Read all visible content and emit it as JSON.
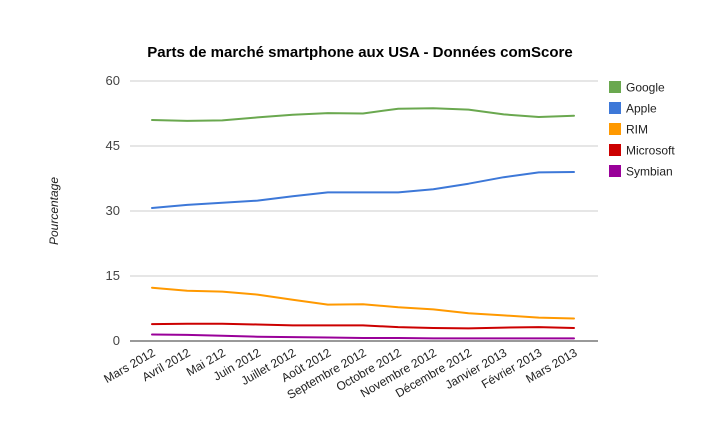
{
  "chart_data": {
    "type": "line",
    "title": "Parts de marché smartphone aux USA - Données comScore",
    "xlabel": "",
    "ylabel": "Pourcentage",
    "ylim": [
      0,
      60
    ],
    "yticks": [
      0,
      15,
      30,
      45,
      60
    ],
    "grid": true,
    "legend": "right",
    "categories": [
      "Mars 2012",
      "Avril 2012",
      "Mai 212",
      "Juin 2012",
      "Juillet 2012",
      "Août 2012",
      "Septembre 2012",
      "Octobre 2012",
      "Novembre 2012",
      "Décembre 2012",
      "Janvier 2013",
      "Février 2013",
      "Mars 2013"
    ],
    "series": [
      {
        "name": "Google",
        "color": "#6aa84f",
        "values": [
          51.0,
          50.8,
          50.9,
          51.6,
          52.2,
          52.6,
          52.5,
          53.6,
          53.7,
          53.4,
          52.3,
          51.7,
          52.0
        ]
      },
      {
        "name": "Apple",
        "color": "#3d78d8",
        "values": [
          30.7,
          31.4,
          31.9,
          32.4,
          33.4,
          34.3,
          34.3,
          34.3,
          35.0,
          36.3,
          37.8,
          38.9,
          39.0
        ]
      },
      {
        "name": "RIM",
        "color": "#ff9900",
        "values": [
          12.3,
          11.6,
          11.4,
          10.7,
          9.5,
          8.4,
          8.5,
          7.8,
          7.3,
          6.4,
          5.9,
          5.4,
          5.2
        ]
      },
      {
        "name": "Microsoft",
        "color": "#cc0000",
        "values": [
          3.9,
          4.0,
          4.0,
          3.8,
          3.6,
          3.6,
          3.6,
          3.2,
          3.0,
          2.9,
          3.1,
          3.2,
          3.0
        ]
      },
      {
        "name": "Symbian",
        "color": "#990099",
        "values": [
          1.5,
          1.4,
          1.2,
          1.0,
          0.9,
          0.8,
          0.7,
          0.7,
          0.6,
          0.6,
          0.6,
          0.6,
          0.6
        ]
      }
    ]
  }
}
